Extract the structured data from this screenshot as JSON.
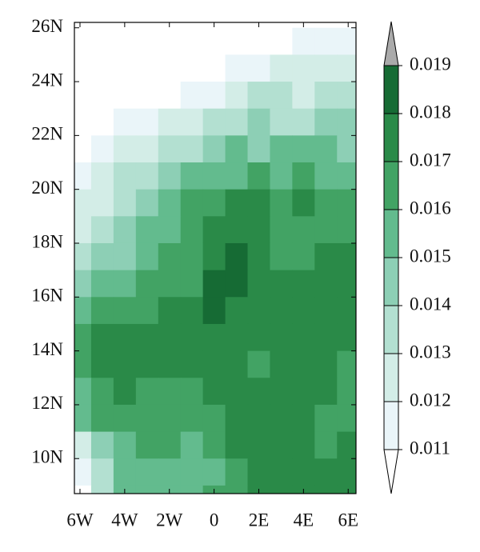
{
  "chart_data": {
    "type": "filled-contour",
    "xlim": [
      -6.25,
      6.35
    ],
    "ylim": [
      8.7,
      26.2
    ],
    "xticks": [
      {
        "value": -6,
        "label": "6W"
      },
      {
        "value": -4,
        "label": "4W"
      },
      {
        "value": -2,
        "label": "2W"
      },
      0,
      {
        "value": 2,
        "label": "2E"
      },
      {
        "value": 4,
        "label": "4E"
      },
      {
        "value": 6,
        "label": "6E"
      }
    ],
    "yticks": [
      {
        "value": 10,
        "label": "10N"
      },
      {
        "value": 12,
        "label": "12N"
      },
      {
        "value": 14,
        "label": "14N"
      },
      {
        "value": 16,
        "label": "16N"
      },
      {
        "value": 18,
        "label": "18N"
      },
      {
        "value": 20,
        "label": "20N"
      },
      {
        "value": 22,
        "label": "22N"
      },
      {
        "value": 24,
        "label": "24N"
      },
      {
        "value": 26,
        "label": "26N"
      }
    ],
    "x": [
      -6,
      -5,
      -4,
      -3,
      -2,
      -1,
      0,
      1,
      2,
      3,
      4,
      5,
      6
    ],
    "y": [
      25.5,
      24.5,
      23.5,
      22.5,
      21.5,
      20.5,
      19.5,
      18.5,
      17.5,
      16.5,
      15.5,
      14.5,
      13.5,
      12.5,
      11.5,
      10.5,
      9.5,
      8.5
    ],
    "values": [
      [
        0.0105,
        0.0105,
        0.0105,
        0.0105,
        0.0105,
        0.0105,
        0.0105,
        0.0105,
        0.0105,
        0.0105,
        0.011,
        0.0115,
        0.0118
      ],
      [
        0.0105,
        0.0105,
        0.0105,
        0.0105,
        0.0105,
        0.0105,
        0.0105,
        0.0112,
        0.0118,
        0.0122,
        0.0122,
        0.0125,
        0.0125
      ],
      [
        0.0105,
        0.0105,
        0.0105,
        0.0105,
        0.0105,
        0.0112,
        0.0118,
        0.0125,
        0.0132,
        0.0135,
        0.0128,
        0.0132,
        0.0132
      ],
      [
        0.0105,
        0.0105,
        0.011,
        0.0115,
        0.012,
        0.0125,
        0.013,
        0.0135,
        0.014,
        0.0138,
        0.0138,
        0.014,
        0.014
      ],
      [
        0.0108,
        0.0112,
        0.012,
        0.0128,
        0.0132,
        0.0138,
        0.0142,
        0.015,
        0.0148,
        0.015,
        0.015,
        0.015,
        0.0148
      ],
      [
        0.0115,
        0.012,
        0.013,
        0.0138,
        0.0142,
        0.015,
        0.0155,
        0.0158,
        0.016,
        0.0158,
        0.016,
        0.0158,
        0.0155
      ],
      [
        0.012,
        0.0128,
        0.0138,
        0.0145,
        0.0152,
        0.016,
        0.0168,
        0.017,
        0.017,
        0.0165,
        0.017,
        0.0165,
        0.016
      ],
      [
        0.0125,
        0.0135,
        0.0142,
        0.015,
        0.0158,
        0.0165,
        0.017,
        0.0172,
        0.0172,
        0.0168,
        0.0165,
        0.0165,
        0.0162
      ],
      [
        0.013,
        0.014,
        0.0148,
        0.0155,
        0.016,
        0.0165,
        0.0172,
        0.0182,
        0.0175,
        0.0168,
        0.0168,
        0.0172,
        0.017
      ],
      [
        0.0145,
        0.015,
        0.0155,
        0.016,
        0.016,
        0.0168,
        0.0182,
        0.0185,
        0.0172,
        0.017,
        0.0172,
        0.0172,
        0.0172
      ],
      [
        0.0155,
        0.016,
        0.0162,
        0.0165,
        0.017,
        0.0172,
        0.0182,
        0.0178,
        0.0172,
        0.0172,
        0.0172,
        0.0172,
        0.0172
      ],
      [
        0.0162,
        0.0172,
        0.0172,
        0.0172,
        0.0172,
        0.0172,
        0.0175,
        0.0172,
        0.0172,
        0.0172,
        0.0172,
        0.0172,
        0.0172
      ],
      [
        0.016,
        0.0172,
        0.0172,
        0.0172,
        0.0175,
        0.0172,
        0.0172,
        0.0172,
        0.0165,
        0.017,
        0.0172,
        0.0172,
        0.0168
      ],
      [
        0.0158,
        0.0165,
        0.0172,
        0.0168,
        0.0165,
        0.0165,
        0.017,
        0.0172,
        0.0172,
        0.0172,
        0.0172,
        0.0172,
        0.0165
      ],
      [
        0.0155,
        0.016,
        0.0165,
        0.0165,
        0.0165,
        0.0162,
        0.0165,
        0.0172,
        0.0172,
        0.0172,
        0.0172,
        0.0165,
        0.0162
      ],
      [
        0.0125,
        0.0145,
        0.0158,
        0.0162,
        0.016,
        0.0158,
        0.0162,
        0.0172,
        0.0172,
        0.0172,
        0.0172,
        0.0168,
        0.0172
      ],
      [
        0.0112,
        0.0135,
        0.0152,
        0.0158,
        0.0158,
        0.0155,
        0.0158,
        0.0162,
        0.0172,
        0.0172,
        0.0172,
        0.0172,
        0.0172
      ],
      [
        0.0108,
        0.013,
        0.015,
        0.0158,
        0.0158,
        0.0158,
        0.016,
        0.0162,
        0.0172,
        0.0172,
        0.0172,
        0.0172,
        0.0172
      ]
    ],
    "colorbar": {
      "levels": [
        0.011,
        0.012,
        0.013,
        0.014,
        0.015,
        0.016,
        0.017,
        0.018,
        0.019
      ],
      "colors": [
        "#ffffff",
        "#eaf5f9",
        "#d3ede7",
        "#b3e0d1",
        "#8dcfb5",
        "#63bb8e",
        "#42a364",
        "#2a8a48",
        "#166b34",
        "#aaaaaa"
      ]
    }
  }
}
